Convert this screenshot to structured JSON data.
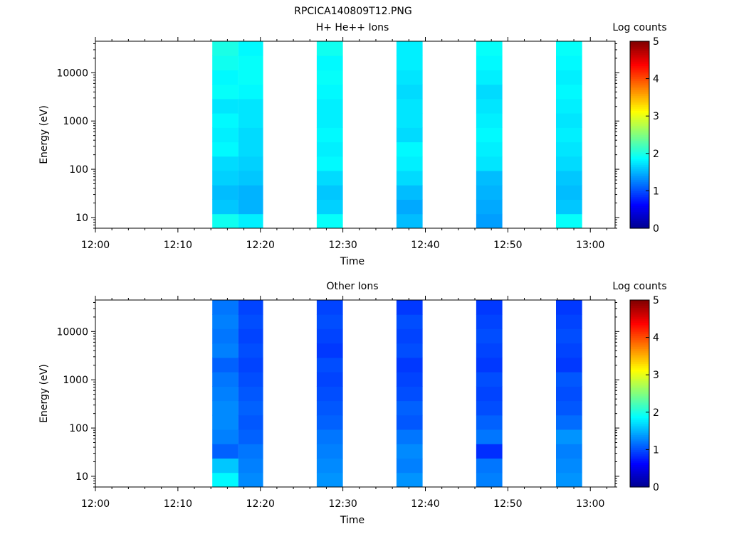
{
  "page_title": "RPCICA140809T12.PNG",
  "chart_data": [
    {
      "type": "heatmap",
      "title": "H+ He++ Ions",
      "xlabel": "Time",
      "ylabel": "Energy (eV)",
      "x_ticks": [
        "12:00",
        "12:10",
        "12:20",
        "12:30",
        "12:40",
        "12:50",
        "13:00"
      ],
      "xlim": [
        "12:00",
        "13:03"
      ],
      "y_scale": "log",
      "y_ticks": [
        "10",
        "100",
        "1000",
        "10000"
      ],
      "ylim": [
        6,
        45000
      ],
      "colorbar": {
        "label": "Log counts",
        "range": [
          0,
          5
        ],
        "ticks": [
          "0",
          "1",
          "2",
          "3",
          "4",
          "5"
        ]
      },
      "colormap": [
        "#00008f",
        "#0000ff",
        "#0080ff",
        "#00ffff",
        "#80ff80",
        "#ffff00",
        "#ff8000",
        "#ff0000",
        "#800000"
      ],
      "blocks": [
        {
          "start": "12:14:10",
          "end": "12:17:20",
          "levels": [
            1.95,
            1.6,
            1.55,
            1.65,
            1.7,
            1.85,
            1.8,
            1.85,
            1.75,
            1.9,
            1.85,
            1.95,
            2.0
          ]
        },
        {
          "start": "12:17:20",
          "end": "12:20:20",
          "levels": [
            1.8,
            1.5,
            1.5,
            1.6,
            1.65,
            1.7,
            1.7,
            1.75,
            1.75,
            1.85,
            1.9,
            1.9,
            1.85
          ]
        },
        {
          "start": "12:26:50",
          "end": "12:30:00",
          "levels": [
            1.9,
            1.65,
            1.6,
            1.7,
            1.85,
            1.8,
            1.85,
            1.8,
            1.8,
            1.85,
            1.9,
            1.85,
            1.95
          ]
        },
        {
          "start": "12:36:30",
          "end": "12:39:40",
          "levels": [
            1.55,
            1.45,
            1.55,
            1.7,
            1.8,
            1.85,
            1.7,
            1.75,
            1.75,
            1.7,
            1.75,
            1.8,
            1.8
          ]
        },
        {
          "start": "12:46:10",
          "end": "12:49:20",
          "levels": [
            1.4,
            1.45,
            1.5,
            1.55,
            1.75,
            1.8,
            1.85,
            1.8,
            1.75,
            1.7,
            1.8,
            1.85,
            1.9
          ]
        },
        {
          "start": "12:55:50",
          "end": "12:59:00",
          "levels": [
            1.9,
            1.6,
            1.55,
            1.6,
            1.7,
            1.75,
            1.8,
            1.75,
            1.8,
            1.85,
            1.8,
            1.85,
            1.9
          ]
        }
      ]
    },
    {
      "type": "heatmap",
      "title": "Other Ions",
      "xlabel": "Time",
      "ylabel": "Energy (eV)",
      "x_ticks": [
        "12:00",
        "12:10",
        "12:20",
        "12:30",
        "12:40",
        "12:50",
        "13:00"
      ],
      "xlim": [
        "12:00",
        "13:03"
      ],
      "y_scale": "log",
      "y_ticks": [
        "10",
        "100",
        "1000",
        "10000"
      ],
      "ylim": [
        6,
        45000
      ],
      "colorbar": {
        "label": "Log counts",
        "range": [
          0,
          5
        ],
        "ticks": [
          "0",
          "1",
          "2",
          "3",
          "4",
          "5"
        ]
      },
      "colormap": [
        "#00008f",
        "#0000ff",
        "#0080ff",
        "#00ffff",
        "#80ff80",
        "#ffff00",
        "#ff8000",
        "#ff0000",
        "#800000"
      ],
      "blocks": [
        {
          "start": "12:14:10",
          "end": "12:17:20",
          "levels": [
            1.85,
            1.6,
            1.1,
            1.25,
            1.3,
            1.3,
            1.25,
            1.2,
            1.1,
            1.25,
            1.2,
            1.25,
            1.2
          ]
        },
        {
          "start": "12:17:20",
          "end": "12:20:20",
          "levels": [
            1.3,
            1.25,
            1.2,
            1.1,
            1.05,
            1.1,
            1.05,
            1.0,
            0.95,
            1.0,
            0.95,
            1.0,
            0.95
          ]
        },
        {
          "start": "12:26:50",
          "end": "12:30:00",
          "levels": [
            1.35,
            1.3,
            1.25,
            1.2,
            1.1,
            1.05,
            1.0,
            0.95,
            1.0,
            0.9,
            0.95,
            1.0,
            0.95
          ]
        },
        {
          "start": "12:36:30",
          "end": "12:39:40",
          "levels": [
            1.35,
            1.25,
            1.3,
            1.2,
            1.05,
            1.1,
            1.0,
            0.95,
            0.9,
            1.0,
            0.95,
            1.0,
            0.9
          ]
        },
        {
          "start": "12:46:10",
          "end": "12:49:20",
          "levels": [
            1.25,
            1.2,
            0.85,
            1.2,
            1.1,
            1.0,
            0.95,
            1.0,
            0.9,
            0.95,
            1.0,
            0.95,
            0.9
          ]
        },
        {
          "start": "12:55:50",
          "end": "12:59:00",
          "levels": [
            1.35,
            1.3,
            1.25,
            1.35,
            1.15,
            1.05,
            1.0,
            1.05,
            0.9,
            0.95,
            1.0,
            0.95,
            0.9
          ]
        }
      ]
    }
  ]
}
